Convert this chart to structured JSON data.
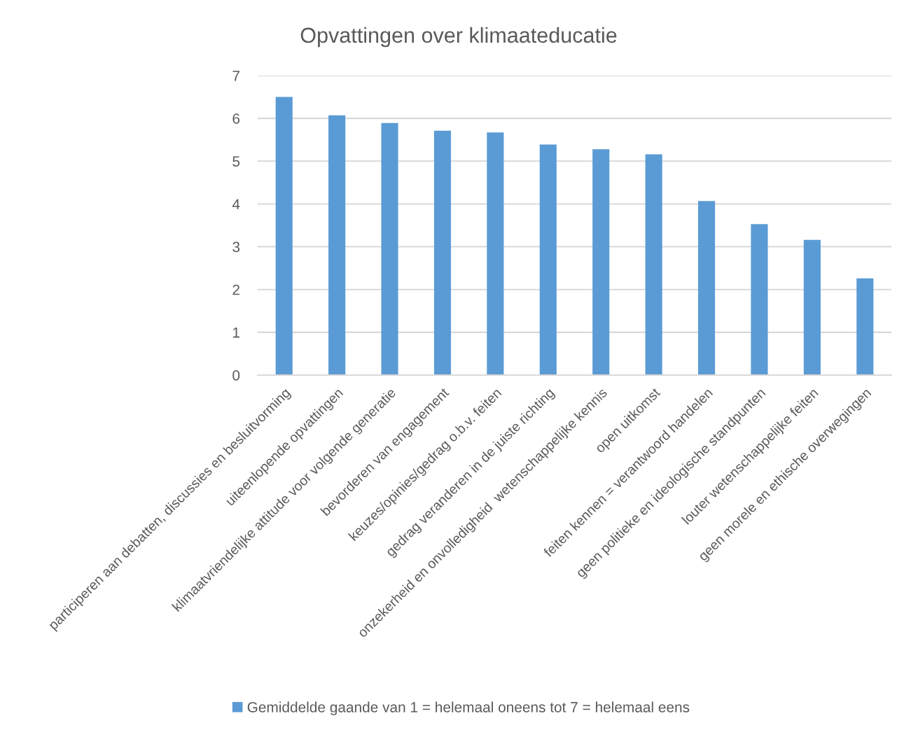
{
  "chart_data": {
    "type": "bar",
    "title": "Opvattingen over klimaateducatie",
    "categories": [
      "participeren aan debatten, discussies en besluitvorming",
      "uiteenlopende opvattingen",
      "klimaatvriendelijke attitude voor volgende generatie",
      "bevorderen van engagement",
      "keuzes/opinies/gedrag o.b.v. feiten",
      "gedrag veranderen in de juiste richting",
      "onzekerheid en onvolledigheid  wetenschappelijke kennis",
      "open uitkomst",
      "feiten kennen = verantwoord handelen",
      "geen politieke en ideologische standpunten",
      "louter wetenschappelijke feiten",
      "geen morele en ethische overwegingen"
    ],
    "series": [
      {
        "name": "Gemiddelde gaande van 1 = helemaal oneens tot 7 = helemaal eens",
        "color": "#5b9bd5",
        "values": [
          6.5,
          6.07,
          5.89,
          5.71,
          5.67,
          5.39,
          5.28,
          5.16,
          4.07,
          3.53,
          3.16,
          2.26
        ]
      }
    ],
    "ylim": [
      0,
      7
    ],
    "yticks": [
      0,
      1,
      2,
      3,
      4,
      5,
      6,
      7
    ],
    "grid": "y",
    "legend": "bottom"
  }
}
